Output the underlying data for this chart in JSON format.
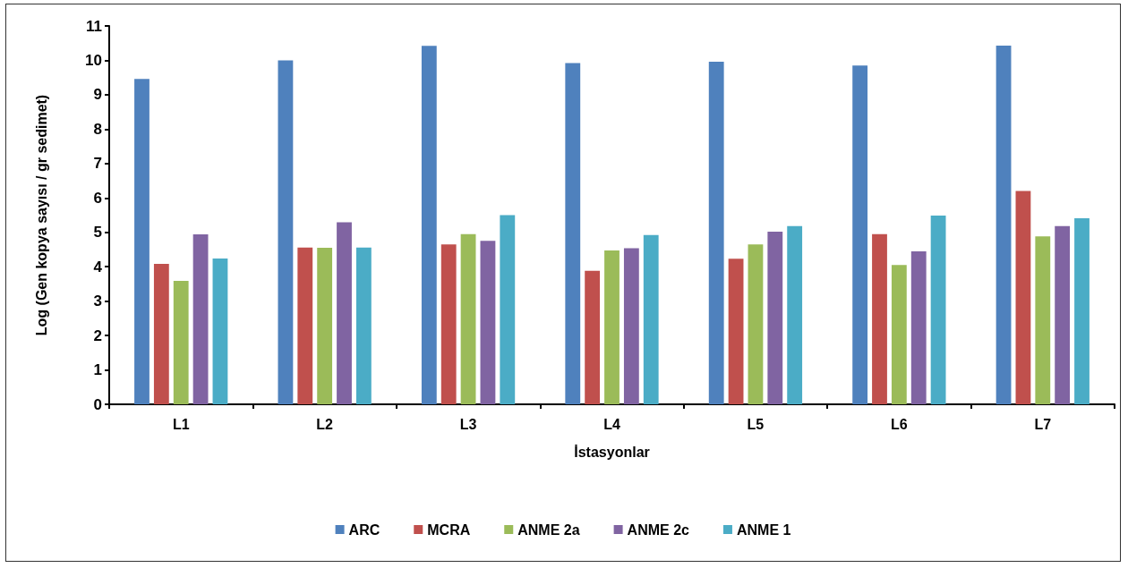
{
  "chart_data": {
    "type": "bar",
    "xlabel": "İstasyonlar",
    "ylabel": "Log (Gen kopya sayısı / gr sedimet)",
    "categories": [
      "L1",
      "L2",
      "L3",
      "L4",
      "L5",
      "L6",
      "L7"
    ],
    "series": [
      {
        "name": "ARC",
        "color": "#4f81bd",
        "values": [
          9.46,
          10.0,
          10.42,
          9.92,
          9.96,
          9.85,
          10.43
        ]
      },
      {
        "name": "MCRA",
        "color": "#c0504d",
        "values": [
          4.08,
          4.56,
          4.65,
          3.88,
          4.23,
          4.95,
          6.2
        ]
      },
      {
        "name": "ANME 2a",
        "color": "#9bbb59",
        "values": [
          3.59,
          4.55,
          4.95,
          4.47,
          4.65,
          4.05,
          4.88
        ]
      },
      {
        "name": "ANME 2c",
        "color": "#8064a2",
        "values": [
          4.94,
          5.29,
          4.75,
          4.54,
          5.02,
          4.45,
          5.18
        ]
      },
      {
        "name": "ANME 1",
        "color": "#4bacc6",
        "values": [
          4.24,
          4.56,
          5.5,
          4.92,
          5.18,
          5.49,
          5.41
        ]
      }
    ],
    "ylim": [
      0,
      11
    ],
    "yticks": [
      0,
      1,
      2,
      3,
      4,
      5,
      6,
      7,
      8,
      9,
      10,
      11
    ],
    "grid": false,
    "legend": "bottom"
  }
}
